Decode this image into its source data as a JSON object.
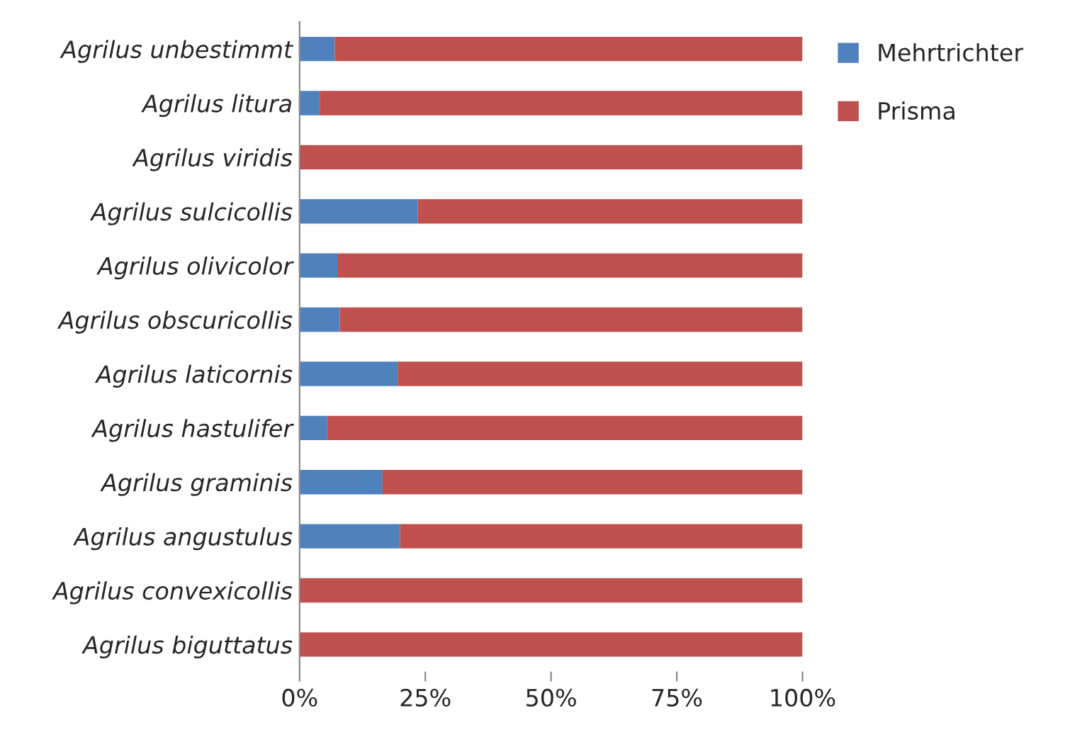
{
  "chart_data": {
    "type": "bar",
    "orientation": "horizontal",
    "stacked": true,
    "categories": [
      "Agrilus unbestimmt",
      "Agrilus litura",
      "Agrilus viridis",
      "Agrilus sulcicollis",
      "Agrilus olivicolor",
      "Agrilus obscuricollis",
      "Agrilus laticornis",
      "Agrilus hastulifer",
      "Agrilus graminis",
      "Agrilus angustulus",
      "Agrilus convexicollis",
      "Agrilus biguttatus"
    ],
    "series": [
      {
        "name": "Mehrtrichter",
        "color": "#4f81bd",
        "values": [
          7,
          4,
          0,
          23.5,
          7.5,
          8,
          19.5,
          5.5,
          16.5,
          20,
          0,
          0
        ]
      },
      {
        "name": "Prisma",
        "color": "#c0504d",
        "values": [
          93,
          96,
          100,
          76.5,
          92.5,
          92,
          80.5,
          94.5,
          83.5,
          80,
          100,
          100
        ]
      }
    ],
    "xlim": [
      0,
      100
    ],
    "xticks": [
      {
        "value": 0,
        "label": "0%"
      },
      {
        "value": 25,
        "label": "25%"
      },
      {
        "value": 50,
        "label": "50%"
      },
      {
        "value": 75,
        "label": "75%"
      },
      {
        "value": 100,
        "label": "100%"
      }
    ],
    "grid": false,
    "legend": "top right"
  }
}
